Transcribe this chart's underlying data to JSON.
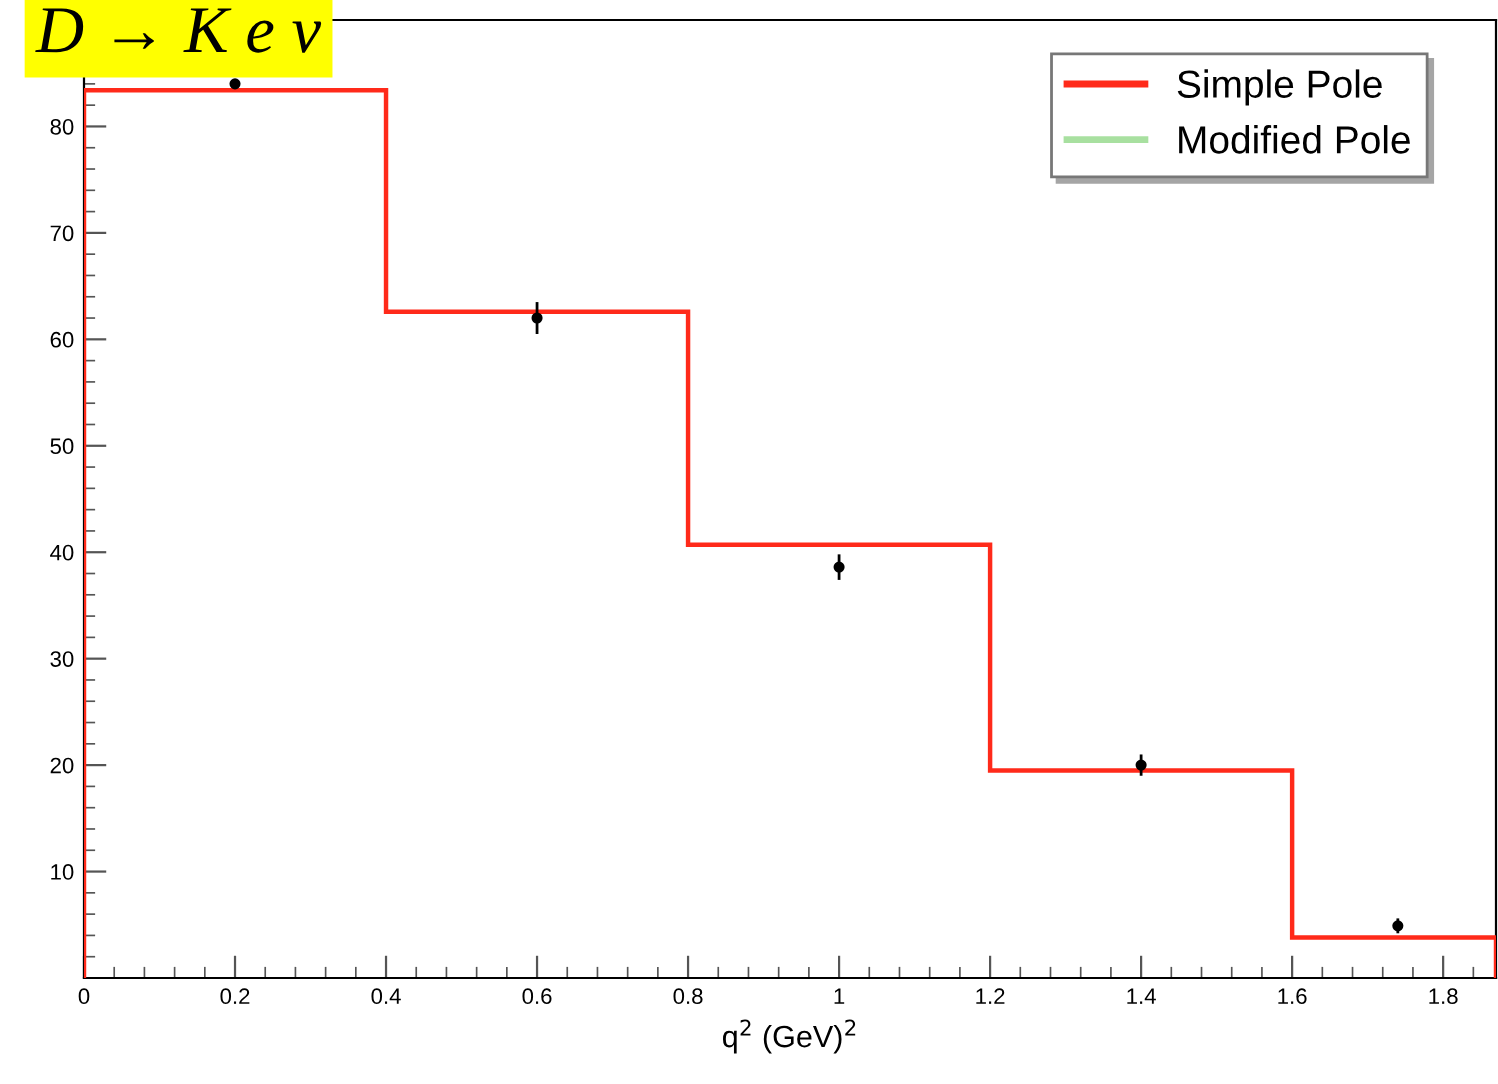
{
  "chart_data": {
    "type": "histogram",
    "title": "D → K e ν",
    "xlabel": "q$^{2}$ (GeV)$^{2}$",
    "xlim": [
      0,
      1.87
    ],
    "ylim": [
      0,
      90
    ],
    "xticks": [
      0,
      0.2,
      0.4,
      0.6,
      0.8,
      1,
      1.2,
      1.4,
      1.6,
      1.8
    ],
    "yticks": [
      10,
      20,
      30,
      40,
      50,
      60,
      70,
      80
    ],
    "legend": "top right",
    "grid": false,
    "series": [
      {
        "name": "Simple Pole",
        "color": "#ff2a1a",
        "bins": [
          0,
          0.4,
          0.8,
          1.2,
          1.6,
          1.87
        ],
        "values": [
          83.4,
          62.6,
          40.7,
          19.5,
          3.8
        ]
      },
      {
        "name": "Modified Pole",
        "color": "#a8e0a0",
        "values": [
          null,
          null,
          null,
          null,
          null
        ]
      },
      {
        "type": "scatter",
        "color": "#000000",
        "marker": "circle",
        "x": [
          0.2,
          0.6,
          1.0,
          1.4,
          1.74
        ],
        "values": [
          84,
          62,
          38.6,
          20,
          4.9
        ],
        "errors": [
          null,
          1.5,
          1.2,
          1,
          0.7
        ]
      }
    ]
  }
}
